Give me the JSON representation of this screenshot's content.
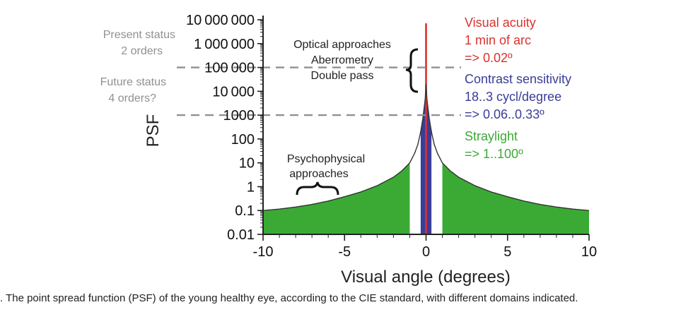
{
  "chart_data": {
    "type": "area",
    "title": "",
    "xlabel": "Visual angle (degrees)",
    "ylabel": "PSF",
    "yscale": "log",
    "xlim": [
      -10,
      10
    ],
    "ylim": [
      0.01,
      10000000
    ],
    "x_ticks": [
      -10,
      -5,
      0,
      5,
      10
    ],
    "x_tick_labels": [
      "-10",
      "-5",
      "0",
      "5",
      "10"
    ],
    "y_ticks": [
      0.01,
      0.1,
      1,
      10,
      100,
      1000,
      10000,
      100000,
      1000000,
      10000000
    ],
    "y_tick_labels": [
      "0.01",
      "0.1",
      "1",
      "10",
      "100",
      "1000",
      "10000",
      "100000",
      "1000000",
      "10000000"
    ],
    "series": [
      {
        "name": "CIE standard PSF, young healthy eye",
        "x": [
          0,
          0.05,
          0.1,
          0.2,
          0.33,
          0.5,
          0.7,
          1,
          1.5,
          2,
          3,
          4,
          5,
          6,
          7,
          8,
          9,
          10
        ],
        "y": [
          20000,
          5000,
          2500,
          700,
          200,
          60,
          25,
          10,
          4.5,
          2.5,
          1.1,
          0.6,
          0.38,
          0.25,
          0.18,
          0.14,
          0.115,
          0.1
        ],
        "symmetric": true
      }
    ],
    "domains": [
      {
        "name": "Visual acuity",
        "range_deg": [
          -0.02,
          0.02
        ],
        "color": "#d9332f"
      },
      {
        "name": "Contrast sensitivity",
        "range_deg": [
          -0.33,
          0.33
        ],
        "color": "#3a3d99"
      },
      {
        "name": "Straylight",
        "range_deg": [
          1,
          10
        ],
        "color": "#3aaa35"
      }
    ],
    "reference_lines": [
      {
        "y": 100000,
        "label": "Present status 2 orders"
      },
      {
        "y": 1000,
        "label": "Future status 4 orders?"
      }
    ],
    "annotations": {
      "present_status": [
        "Present status",
        "2 orders"
      ],
      "future_status": [
        "Future status",
        "4 orders?"
      ],
      "optical": [
        "Optical approaches",
        "Aberrometry",
        "Double pass"
      ],
      "psychophysical": [
        "Psychophysical",
        "approaches"
      ],
      "visual_acuity": [
        "Visual acuity",
        "1 min of arc",
        "=> 0.02º"
      ],
      "contrast_sensitivity": [
        "Contrast sensitivity",
        "18..3 cycl/degree",
        "=> 0.06..0.33º"
      ],
      "straylight": [
        "Straylight",
        "=> 1..100º"
      ]
    }
  },
  "caption": ". The point spread function (PSF) of the young healthy eye, according to the CIE standard, with different domains indicated.",
  "colors": {
    "green": "#3aaa35",
    "blue": "#3a3d99",
    "red": "#d9332f",
    "gray": "#909090",
    "axis": "#222222"
  }
}
